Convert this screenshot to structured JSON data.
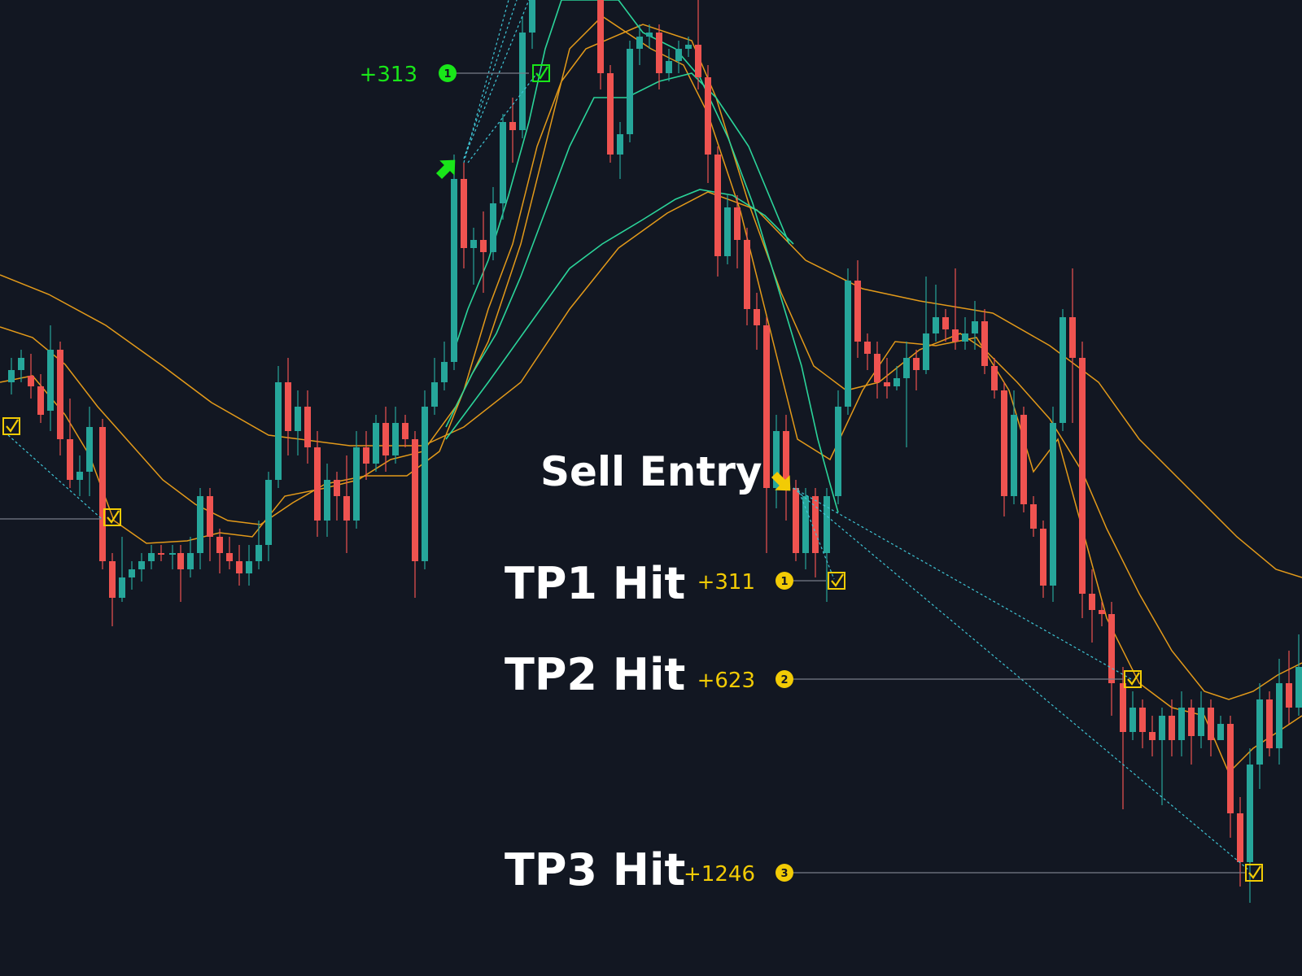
{
  "annotations": {
    "sell_entry": "Sell Entry",
    "tp1_hit": "TP1 Hit",
    "tp2_hit": "TP2 Hit",
    "tp3_hit": "TP3 Hit"
  },
  "chart_data": {
    "type": "candlestick",
    "title": "",
    "xlabel": "",
    "ylabel": "",
    "grid": false,
    "colors": {
      "background": "#121722",
      "bull": "#26a69a",
      "bear": "#ef5350",
      "orange_band": "#e39a1a",
      "green_band": "#2bd49a",
      "buy_signal": "#19e619",
      "sell_signal": "#f2cb05",
      "target_line": "#777d88",
      "projection": "#3fc6d6"
    },
    "buy_signal": {
      "profit_label": "+313",
      "badge": "1"
    },
    "sell_signal": {
      "targets": [
        {
          "name": "TP1",
          "profit_label": "+311",
          "badge": "1"
        },
        {
          "name": "TP2",
          "profit_label": "+623",
          "badge": "2"
        },
        {
          "name": "TP3",
          "profit_label": "+1246",
          "badge": "3"
        }
      ]
    }
  }
}
